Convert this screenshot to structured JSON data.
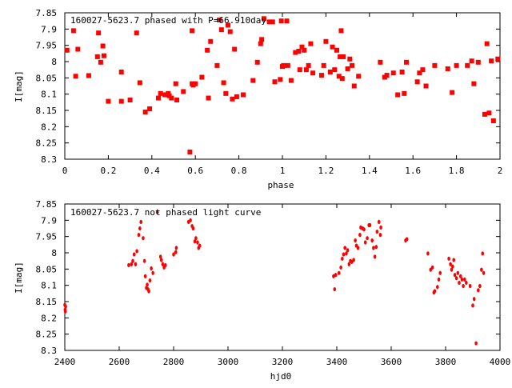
{
  "chart_data": [
    {
      "type": "scatter",
      "title": "160027-5623.7 phased with P=66.910day",
      "xlabel": "phase",
      "ylabel": "I[mag]",
      "xlim": [
        0,
        2
      ],
      "ylim": [
        8.3,
        7.85
      ],
      "y_inverted": true,
      "grid": false,
      "marker": "filled-square",
      "color": "#ff0000",
      "x_ticks": [
        "0",
        "0.2",
        "0.4",
        "0.6",
        "0.8",
        "1",
        "1.2",
        "1.4",
        "1.6",
        "1.8",
        "2"
      ],
      "y_ticks": [
        "7.85",
        "7.9",
        "7.95",
        "8",
        "8.05",
        "8.1",
        "8.15",
        "8.2",
        "8.25",
        "8.3"
      ],
      "x_tick_values": [
        0,
        0.2,
        0.4,
        0.6,
        0.8,
        1,
        1.2,
        1.4,
        1.6,
        1.8,
        2
      ],
      "y_tick_values": [
        7.85,
        7.9,
        7.95,
        8,
        8.05,
        8.1,
        8.15,
        8.2,
        8.25,
        8.3
      ],
      "points": [
        [
          0.01,
          7.965
        ],
        [
          0.04,
          7.905
        ],
        [
          0.05,
          8.045
        ],
        [
          0.06,
          7.962
        ],
        [
          0.11,
          8.043
        ],
        [
          0.15,
          7.985
        ],
        [
          0.155,
          7.912
        ],
        [
          0.165,
          8.002
        ],
        [
          0.175,
          7.952
        ],
        [
          0.18,
          7.982
        ],
        [
          0.2,
          8.122
        ],
        [
          0.26,
          8.032
        ],
        [
          0.26,
          8.122
        ],
        [
          0.3,
          8.118
        ],
        [
          0.33,
          7.912
        ],
        [
          0.345,
          8.065
        ],
        [
          0.37,
          8.155
        ],
        [
          0.39,
          8.145
        ],
        [
          0.43,
          8.112
        ],
        [
          0.44,
          8.098
        ],
        [
          0.46,
          8.102
        ],
        [
          0.475,
          8.098
        ],
        [
          0.48,
          8.105
        ],
        [
          0.49,
          8.112
        ],
        [
          0.51,
          8.068
        ],
        [
          0.515,
          8.118
        ],
        [
          0.545,
          8.092
        ],
        [
          0.575,
          8.278
        ],
        [
          0.585,
          7.905
        ],
        [
          0.585,
          8.068
        ],
        [
          0.59,
          8.072
        ],
        [
          0.6,
          8.068
        ],
        [
          0.63,
          8.048
        ],
        [
          0.655,
          7.965
        ],
        [
          0.66,
          8.112
        ],
        [
          0.67,
          7.938
        ],
        [
          0.7,
          8.012
        ],
        [
          0.71,
          7.872
        ],
        [
          0.72,
          7.902
        ],
        [
          0.73,
          8.065
        ],
        [
          0.74,
          8.098
        ],
        [
          0.75,
          7.888
        ],
        [
          0.76,
          7.908
        ],
        [
          0.77,
          8.115
        ],
        [
          0.78,
          7.962
        ],
        [
          0.79,
          8.108
        ],
        [
          0.82,
          8.102
        ],
        [
          0.865,
          8.058
        ],
        [
          0.885,
          8.002
        ],
        [
          0.9,
          7.945
        ],
        [
          0.905,
          7.932
        ],
        [
          0.915,
          7.868
        ],
        [
          0.94,
          7.878
        ],
        [
          0.955,
          7.878
        ],
        [
          0.965,
          8.062
        ],
        [
          0.99,
          8.055
        ],
        [
          0.995,
          7.875
        ],
        [
          1.0,
          8.015
        ],
        [
          1.005,
          8.012
        ],
        [
          1.02,
          7.875
        ],
        [
          1.025,
          8.012
        ],
        [
          1.04,
          8.058
        ],
        [
          1.06,
          7.972
        ],
        [
          1.075,
          7.968
        ],
        [
          1.08,
          8.025
        ],
        [
          1.09,
          7.955
        ],
        [
          1.1,
          7.965
        ],
        [
          1.11,
          8.025
        ],
        [
          1.12,
          8.012
        ],
        [
          1.13,
          7.945
        ],
        [
          1.14,
          8.035
        ],
        [
          1.18,
          8.042
        ],
        [
          1.19,
          8.012
        ],
        [
          1.2,
          7.938
        ],
        [
          1.22,
          8.032
        ],
        [
          1.23,
          7.955
        ],
        [
          1.24,
          8.025
        ],
        [
          1.25,
          7.965
        ],
        [
          1.26,
          8.045
        ],
        [
          1.265,
          7.985
        ],
        [
          1.27,
          7.905
        ],
        [
          1.275,
          8.052
        ],
        [
          1.28,
          7.985
        ],
        [
          1.3,
          8.022
        ],
        [
          1.31,
          7.992
        ],
        [
          1.32,
          8.012
        ],
        [
          1.33,
          8.075
        ],
        [
          1.35,
          8.045
        ],
        [
          1.45,
          8.002
        ],
        [
          1.47,
          8.048
        ],
        [
          1.48,
          8.042
        ],
        [
          1.51,
          8.035
        ],
        [
          1.53,
          8.102
        ],
        [
          1.55,
          8.032
        ],
        [
          1.56,
          8.098
        ],
        [
          1.57,
          8.002
        ],
        [
          1.62,
          8.062
        ],
        [
          1.63,
          8.035
        ],
        [
          1.645,
          8.025
        ],
        [
          1.66,
          8.075
        ],
        [
          1.7,
          8.012
        ],
        [
          1.76,
          8.022
        ],
        [
          1.78,
          8.095
        ],
        [
          1.8,
          8.012
        ],
        [
          1.85,
          8.012
        ],
        [
          1.87,
          7.998
        ],
        [
          1.88,
          8.068
        ],
        [
          1.9,
          8.002
        ],
        [
          1.93,
          8.162
        ],
        [
          1.94,
          7.945
        ],
        [
          1.95,
          8.158
        ],
        [
          1.96,
          7.998
        ],
        [
          1.97,
          8.182
        ],
        [
          1.99,
          7.992
        ]
      ]
    },
    {
      "type": "scatter",
      "title": "160027-5623.7 not phased light curve",
      "xlabel": "hjd0",
      "ylabel": "I[mag]",
      "xlim": [
        2400,
        4000
      ],
      "ylim": [
        8.3,
        7.85
      ],
      "y_inverted": true,
      "grid": false,
      "marker": "filled-dot",
      "color": "#ff0000",
      "x_ticks": [
        "2400",
        "2600",
        "2800",
        "3000",
        "3200",
        "3400",
        "3600",
        "3800",
        "4000"
      ],
      "y_ticks": [
        "7.85",
        "7.9",
        "7.95",
        "8",
        "8.05",
        "8.1",
        "8.15",
        "8.2",
        "8.25",
        "8.3"
      ],
      "x_tick_values": [
        2400,
        2600,
        2800,
        3000,
        3200,
        3400,
        3600,
        3800,
        4000
      ],
      "y_tick_values": [
        7.85,
        7.9,
        7.95,
        8,
        8.05,
        8.1,
        8.15,
        8.2,
        8.25,
        8.3
      ],
      "points": [
        [
          2400,
          8.16
        ],
        [
          2401,
          8.175
        ],
        [
          2402,
          8.18
        ],
        [
          2403,
          8.165
        ],
        [
          2635,
          8.038
        ],
        [
          2645,
          8.035
        ],
        [
          2650,
          8.025
        ],
        [
          2655,
          8.005
        ],
        [
          2660,
          8.035
        ],
        [
          2665,
          7.995
        ],
        [
          2672,
          7.945
        ],
        [
          2676,
          7.925
        ],
        [
          2680,
          7.905
        ],
        [
          2688,
          7.955
        ],
        [
          2693,
          8.025
        ],
        [
          2696,
          8.072
        ],
        [
          2700,
          8.108
        ],
        [
          2703,
          8.098
        ],
        [
          2706,
          8.112
        ],
        [
          2709,
          8.118
        ],
        [
          2713,
          8.085
        ],
        [
          2718,
          8.048
        ],
        [
          2724,
          8.062
        ],
        [
          2740,
          7.875
        ],
        [
          2752,
          8.012
        ],
        [
          2755,
          8.022
        ],
        [
          2760,
          8.035
        ],
        [
          2765,
          8.045
        ],
        [
          2770,
          8.038
        ],
        [
          2800,
          8.005
        ],
        [
          2808,
          7.998
        ],
        [
          2810,
          7.985
        ],
        [
          2855,
          7.905
        ],
        [
          2862,
          7.9
        ],
        [
          2868,
          7.918
        ],
        [
          2872,
          7.925
        ],
        [
          2878,
          7.965
        ],
        [
          2882,
          7.955
        ],
        [
          2888,
          7.968
        ],
        [
          2892,
          7.985
        ],
        [
          2896,
          7.978
        ],
        [
          3388,
          8.072
        ],
        [
          3392,
          8.112
        ],
        [
          3396,
          8.068
        ],
        [
          3408,
          8.062
        ],
        [
          3415,
          8.045
        ],
        [
          3420,
          8.018
        ],
        [
          3425,
          8.005
        ],
        [
          3430,
          7.985
        ],
        [
          3435,
          8.002
        ],
        [
          3440,
          7.992
        ],
        [
          3445,
          8.035
        ],
        [
          3450,
          8.025
        ],
        [
          3455,
          8.028
        ],
        [
          3462,
          8.022
        ],
        [
          3468,
          7.962
        ],
        [
          3472,
          7.978
        ],
        [
          3478,
          7.985
        ],
        [
          3485,
          7.945
        ],
        [
          3488,
          7.922
        ],
        [
          3495,
          7.925
        ],
        [
          3500,
          7.928
        ],
        [
          3505,
          7.968
        ],
        [
          3512,
          7.955
        ],
        [
          3518,
          7.915
        ],
        [
          3522,
          7.915
        ],
        [
          3530,
          7.962
        ],
        [
          3535,
          7.985
        ],
        [
          3540,
          8.012
        ],
        [
          3545,
          7.982
        ],
        [
          3548,
          7.935
        ],
        [
          3555,
          7.905
        ],
        [
          3560,
          7.945
        ],
        [
          3562,
          7.922
        ],
        [
          3653,
          7.962
        ],
        [
          3658,
          7.958
        ],
        [
          3735,
          8.002
        ],
        [
          3745,
          8.052
        ],
        [
          3752,
          8.045
        ],
        [
          3757,
          8.122
        ],
        [
          3760,
          8.118
        ],
        [
          3770,
          8.105
        ],
        [
          3775,
          8.082
        ],
        [
          3780,
          8.062
        ],
        [
          3812,
          8.018
        ],
        [
          3818,
          8.035
        ],
        [
          3822,
          8.052
        ],
        [
          3826,
          8.042
        ],
        [
          3830,
          8.022
        ],
        [
          3834,
          8.068
        ],
        [
          3840,
          8.078
        ],
        [
          3845,
          8.062
        ],
        [
          3850,
          8.092
        ],
        [
          3855,
          8.072
        ],
        [
          3860,
          8.082
        ],
        [
          3865,
          8.102
        ],
        [
          3870,
          8.082
        ],
        [
          3876,
          8.092
        ],
        [
          3890,
          8.102
        ],
        [
          3900,
          8.162
        ],
        [
          3905,
          8.142
        ],
        [
          3912,
          8.278
        ],
        [
          3920,
          8.115
        ],
        [
          3926,
          8.102
        ],
        [
          3932,
          8.052
        ],
        [
          3936,
          8.002
        ],
        [
          3940,
          8.062
        ]
      ]
    }
  ]
}
